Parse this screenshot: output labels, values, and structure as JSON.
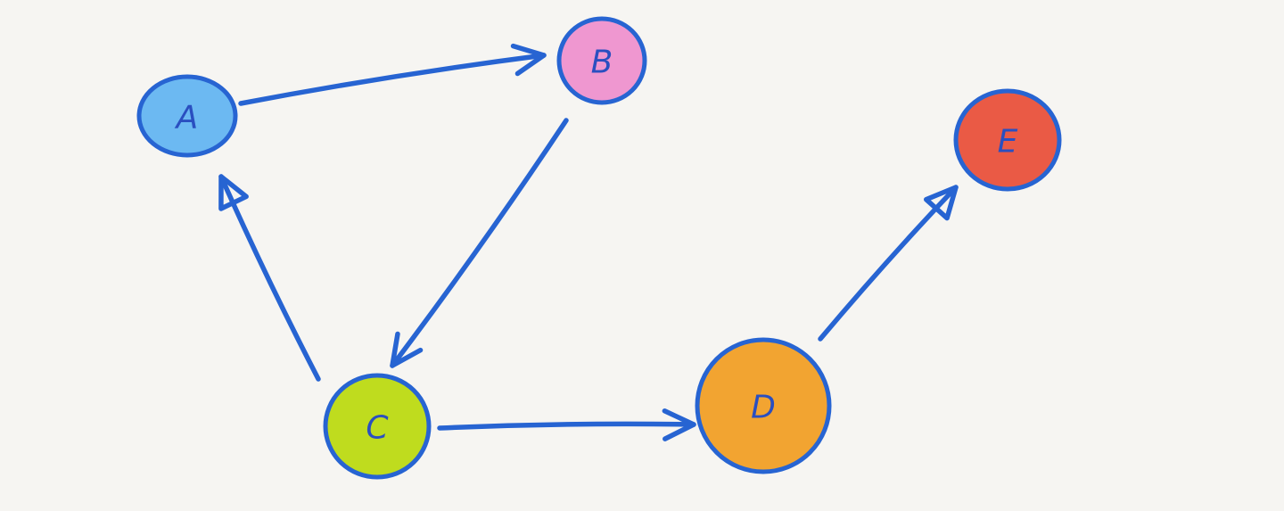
{
  "diagram": {
    "type": "directed-graph",
    "style": "hand-drawn marker",
    "edge_color": "#2764d2",
    "label_color": "#2a4fc0",
    "background": "#f6f5f2",
    "nodes": [
      {
        "id": "A",
        "label": "A",
        "fill": "#6cb9f2"
      },
      {
        "id": "B",
        "label": "B",
        "fill": "#ef97d0"
      },
      {
        "id": "C",
        "label": "C",
        "fill": "#bfdc1e"
      },
      {
        "id": "D",
        "label": "D",
        "fill": "#f2a431"
      },
      {
        "id": "E",
        "label": "E",
        "fill": "#ea5a45"
      }
    ],
    "edges": [
      {
        "from": "A",
        "to": "B",
        "arrowhead": "open"
      },
      {
        "from": "B",
        "to": "C",
        "arrowhead": "open"
      },
      {
        "from": "C",
        "to": "A",
        "arrowhead": "hollow-triangle"
      },
      {
        "from": "C",
        "to": "D",
        "arrowhead": "open"
      },
      {
        "from": "D",
        "to": "E",
        "arrowhead": "hollow-triangle"
      }
    ]
  }
}
